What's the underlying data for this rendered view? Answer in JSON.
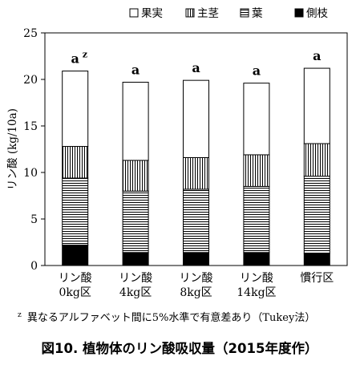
{
  "chart_data": {
    "type": "bar",
    "stacked": true,
    "title": "",
    "caption": "図10.  植物体のリン酸吸収量（2015年度作）",
    "footnote_mark": "z",
    "footnote_text": "異なるアルファベット間に5%水準で有意差あり（Tukey法）",
    "ylabel": "リン酸 (kg/10a)",
    "xlabel": "",
    "ylim": [
      0,
      25
    ],
    "yticks": [
      0,
      5,
      10,
      15,
      20,
      25
    ],
    "grid": false,
    "legend_position": "top-right",
    "categories": [
      [
        "リン酸",
        "0kg区"
      ],
      [
        "リン酸",
        "4kg区"
      ],
      [
        "リン酸",
        "8kg区"
      ],
      [
        "リン酸",
        "14kg区"
      ],
      [
        "慣行区"
      ]
    ],
    "series": [
      {
        "name": "側枝",
        "pattern": "solid",
        "values": [
          2.2,
          1.4,
          1.4,
          1.4,
          1.3
        ]
      },
      {
        "name": "葉",
        "pattern": "horizontal",
        "values": [
          7.2,
          6.6,
          6.8,
          7.1,
          8.3
        ]
      },
      {
        "name": "主茎",
        "pattern": "vertical",
        "values": [
          3.4,
          3.3,
          3.4,
          3.4,
          3.5
        ]
      },
      {
        "name": "果実",
        "pattern": "white",
        "values": [
          8.1,
          8.4,
          8.3,
          7.7,
          8.1
        ]
      }
    ],
    "legend_order": [
      "果実",
      "主茎",
      "葉",
      "側枝"
    ],
    "significance_labels": [
      "a",
      "a",
      "a",
      "a",
      "a"
    ],
    "significance_superscript": [
      "z",
      "",
      "",
      "",
      ""
    ]
  }
}
